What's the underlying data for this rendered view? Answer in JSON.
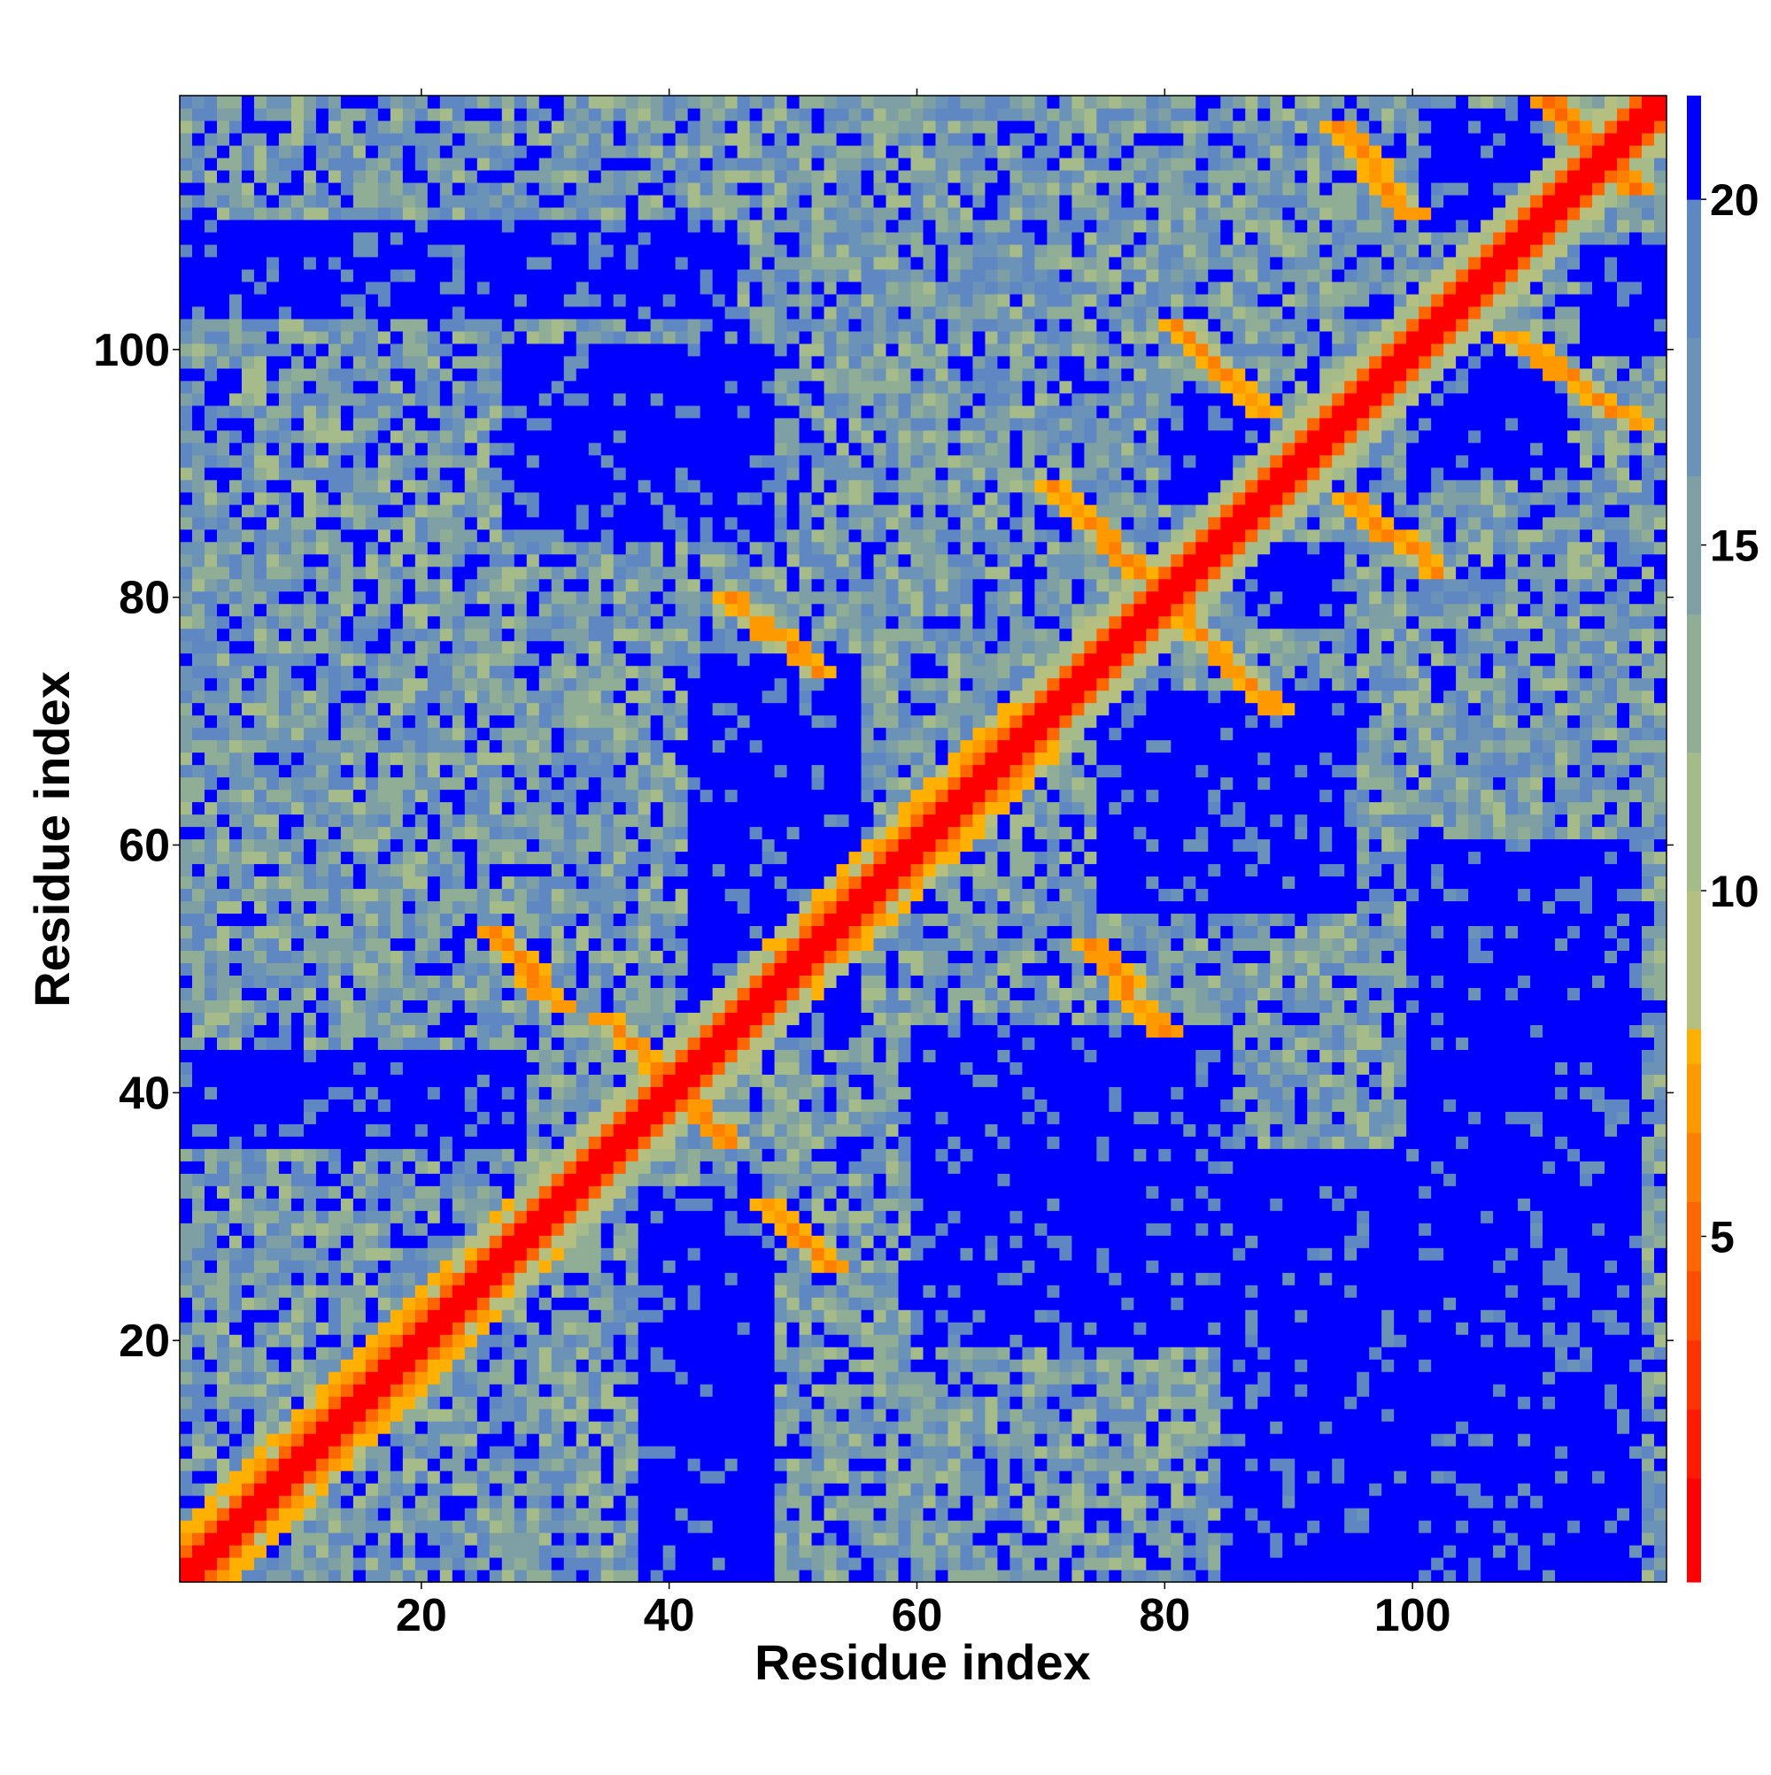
{
  "chart_data": {
    "type": "heatmap",
    "title": "",
    "xlabel": "Residue index",
    "ylabel": "Residue index",
    "n_residues": 120,
    "xlim": [
      0.5,
      120.5
    ],
    "ylim": [
      0.5,
      120.5
    ],
    "x_ticks": [
      20,
      40,
      60,
      80,
      100
    ],
    "y_ticks": [
      20,
      40,
      60,
      80,
      100
    ],
    "x_tick_labels": [
      "20",
      "40",
      "60",
      "80",
      "100"
    ],
    "y_tick_labels": [
      "20",
      "40",
      "60",
      "80",
      "100"
    ],
    "colorbar": {
      "range": [
        0,
        21.5
      ],
      "ticks": [
        5,
        10,
        15,
        20
      ],
      "tick_labels": [
        "5",
        "10",
        "15",
        "20"
      ],
      "levels": [
        {
          "from": 0,
          "to": 1.5,
          "color": "#ff0000"
        },
        {
          "from": 1.5,
          "to": 2.5,
          "color": "#ff1a00"
        },
        {
          "from": 2.5,
          "to": 3.5,
          "color": "#ff3300"
        },
        {
          "from": 3.5,
          "to": 4.5,
          "color": "#ff4d00"
        },
        {
          "from": 4.5,
          "to": 5.5,
          "color": "#ff6600"
        },
        {
          "from": 5.5,
          "to": 6.5,
          "color": "#ff8000"
        },
        {
          "from": 6.5,
          "to": 7.5,
          "color": "#ff9900"
        },
        {
          "from": 7.5,
          "to": 8.0,
          "color": "#ffb000"
        },
        {
          "from": 8.0,
          "to": 10.0,
          "color": "#b5bf80"
        },
        {
          "from": 10.0,
          "to": 12.0,
          "color": "#a6bb8a"
        },
        {
          "from": 12.0,
          "to": 14.0,
          "color": "#8fae95"
        },
        {
          "from": 14.0,
          "to": 16.0,
          "color": "#7ea0a5"
        },
        {
          "from": 16.0,
          "to": 18.0,
          "color": "#6b93b8"
        },
        {
          "from": 18.0,
          "to": 20.0,
          "color": "#5f88c2"
        },
        {
          "from": 20.0,
          "to": 21.5,
          "color": "#0000ff"
        }
      ]
    },
    "grid": false,
    "legend": "colorbar-right",
    "description_note_free": true,
    "structure": {
      "diagonal_value": 0,
      "near_diagonal_bands": [
        {
          "from": 1,
          "to": 27,
          "value": 6
        },
        {
          "from": 52,
          "to": 68,
          "value": 6
        }
      ],
      "contact_segments": [
        {
          "x": [
            35,
            45
          ],
          "y": [
            46,
            36
          ],
          "value": 6
        },
        {
          "x": [
            26,
            31
          ],
          "y": [
            53,
            47
          ],
          "value": 6
        },
        {
          "x": [
            48,
            53
          ],
          "y": [
            31,
            26
          ],
          "value": 6
        },
        {
          "x": [
            45,
            52
          ],
          "y": [
            80,
            74
          ],
          "value": 6
        },
        {
          "x": [
            74,
            80
          ],
          "y": [
            52,
            45
          ],
          "value": 6
        },
        {
          "x": [
            71,
            78
          ],
          "y": [
            89,
            82
          ],
          "value": 6
        },
        {
          "x": [
            81,
            89
          ],
          "y": [
            79,
            71
          ],
          "value": 6
        },
        {
          "x": [
            81,
            88
          ],
          "y": [
            102,
            95
          ],
          "value": 6
        },
        {
          "x": [
            95,
            102
          ],
          "y": [
            88,
            82
          ],
          "value": 6
        },
        {
          "x": [
            94,
            100
          ],
          "y": [
            118,
            111
          ],
          "value": 6
        },
        {
          "x": [
            108,
            118
          ],
          "y": [
            101,
            94
          ],
          "value": 6
        },
        {
          "x": [
            111,
            118
          ],
          "y": [
            120,
            113
          ],
          "value": 5
        }
      ],
      "blue_blocks": [
        {
          "x": [
            1,
            28
          ],
          "y": [
            36,
            43
          ]
        },
        {
          "x": [
            38,
            48
          ],
          "y": [
            1,
            32
          ]
        },
        {
          "x": [
            60,
            85
          ],
          "y": [
            20,
            45
          ]
        },
        {
          "x": [
            42,
            55
          ],
          "y": [
            45,
            75
          ]
        },
        {
          "x": [
            27,
            48
          ],
          "y": [
            85,
            100
          ]
        },
        {
          "x": [
            1,
            45
          ],
          "y": [
            103,
            110
          ]
        },
        {
          "x": [
            85,
            100
          ],
          "y": [
            1,
            35
          ]
        },
        {
          "x": [
            100,
            118
          ],
          "y": [
            1,
            60
          ]
        },
        {
          "x": [
            75,
            95
          ],
          "y": [
            55,
            72
          ]
        },
        {
          "x": [
            100,
            112
          ],
          "y": [
            90,
            100
          ]
        },
        {
          "x": [
            80,
            88
          ],
          "y": [
            88,
            96
          ]
        },
        {
          "x": [
            87,
            94
          ],
          "y": [
            78,
            84
          ]
        },
        {
          "x": [
            101,
            110
          ],
          "y": [
            110,
            119
          ]
        },
        {
          "x": [
            114,
            120
          ],
          "y": [
            100,
            108
          ]
        }
      ]
    }
  }
}
